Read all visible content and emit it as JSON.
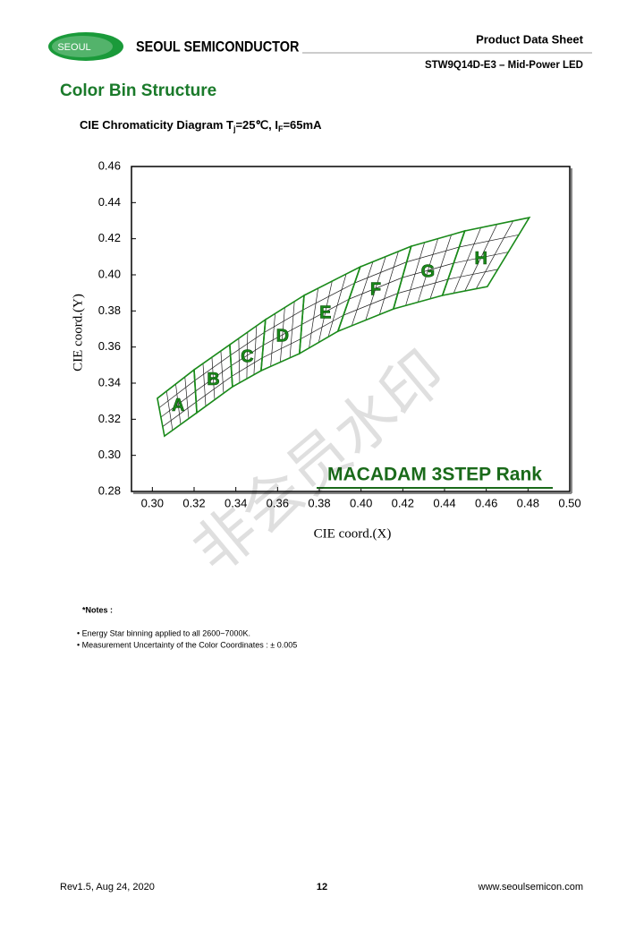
{
  "header": {
    "logo": "SEOUL",
    "company": "SEOUL SEMICONDUCTOR",
    "doc_type": "Product Data Sheet",
    "product": "STW9Q14D-E3 – Mid-Power LED"
  },
  "section_title": "Color Bin Structure",
  "chart_data": {
    "type": "polygon",
    "title_parts": [
      "CIE Chromaticity Diagram T",
      "j",
      "=25℃, I",
      "F",
      "=65mA"
    ],
    "x_label": "CIE coord.(X)",
    "y_label": "CIE coord.(Y)",
    "xlim": [
      0.29,
      0.5
    ],
    "ylim": [
      0.28,
      0.46
    ],
    "xticks": [
      {
        "value": 0.3,
        "label": "0.30"
      },
      0.32,
      0.34,
      0.36,
      0.38,
      {
        "value": 0.4,
        "label": "0.40"
      },
      0.42,
      0.44,
      0.46,
      0.48,
      {
        "value": 0.5,
        "label": "0.50"
      }
    ],
    "yticks": [
      {
        "value": 0.28,
        "label": "0.28"
      },
      {
        "value": 0.3,
        "label": "0.30"
      },
      0.32,
      0.34,
      0.36,
      0.38,
      {
        "value": 0.4,
        "label": "0.40"
      },
      0.42,
      0.44,
      0.46
    ],
    "color": "#1a8a1a",
    "annotation": "MACADAM 3STEP Rank",
    "bins": [
      {
        "name": "A",
        "x": [
          0.3024,
          0.32,
          0.3213,
          0.3058
        ],
        "y": [
          0.3316,
          0.3474,
          0.3236,
          0.3107
        ]
      },
      {
        "name": "B",
        "x": [
          0.32,
          0.3371,
          0.3384,
          0.3213
        ],
        "y": [
          0.3474,
          0.3613,
          0.338,
          0.3236
        ]
      },
      {
        "name": "C",
        "x": [
          0.3371,
          0.3542,
          0.3521,
          0.3384
        ],
        "y": [
          0.3613,
          0.3752,
          0.3469,
          0.338
        ]
      },
      {
        "name": "D",
        "x": [
          0.3542,
          0.3727,
          0.3705,
          0.3521
        ],
        "y": [
          0.3752,
          0.3886,
          0.3564,
          0.3469
        ]
      },
      {
        "name": "E",
        "x": [
          0.3727,
          0.3996,
          0.3889,
          0.3705
        ],
        "y": [
          0.3886,
          0.4044,
          0.3687,
          0.3564
        ]
      },
      {
        "name": "F",
        "x": [
          0.3996,
          0.424,
          0.4155,
          0.3889
        ],
        "y": [
          0.4044,
          0.4158,
          0.3811,
          0.3687
        ]
      },
      {
        "name": "G",
        "x": [
          0.424,
          0.4497,
          0.439,
          0.4155
        ],
        "y": [
          0.4158,
          0.4243,
          0.3886,
          0.3811
        ]
      },
      {
        "name": "H",
        "x": [
          0.4497,
          0.4806,
          0.4605,
          0.439
        ],
        "y": [
          0.4243,
          0.4317,
          0.3935,
          0.3886
        ]
      }
    ]
  },
  "watermark": "非会员水印",
  "notes": {
    "title": "*Notes :",
    "items": [
      "• Energy Star binning applied to all 2600~7000K.",
      "• Measurement Uncertainty of the Color Coordinates : ± 0.005"
    ]
  },
  "footer": {
    "revision": "Rev1.5, Aug 24, 2020",
    "page": "12",
    "website": "www.seoulsemicon.com"
  }
}
